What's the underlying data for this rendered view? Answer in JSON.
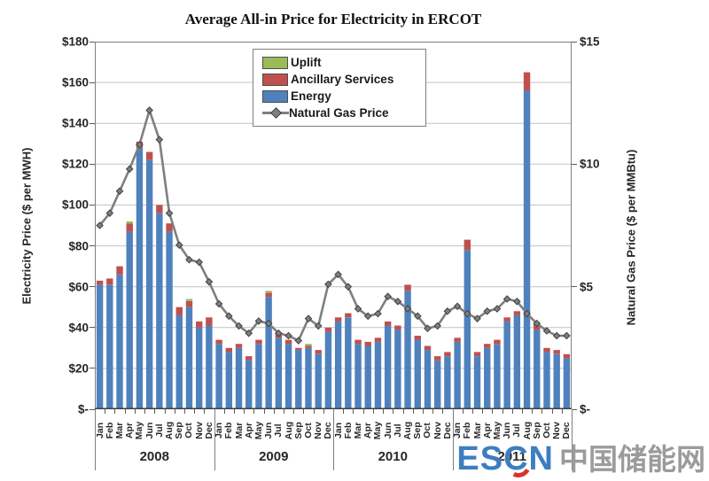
{
  "title": "Average All-in Price for Electricity in ERCOT",
  "watermark": {
    "es": "ES",
    "c": "C",
    "n": "N",
    "chinese": "中国储能网"
  },
  "chart_data": {
    "type": "bar",
    "subtype": "stacked-bars-with-line-overlay",
    "title": "Average All-in Price for Electricity in ERCOT",
    "month_labels": [
      "Jan",
      "Feb",
      "Mar",
      "Apr",
      "May",
      "Jun",
      "Jul",
      "Aug",
      "Sep",
      "Oct",
      "Nov",
      "Dec"
    ],
    "years": [
      "2008",
      "2009",
      "2010",
      "2011"
    ],
    "left_axis": {
      "label": "Electricity Price ($ per MWH)",
      "ticks": [
        "$180",
        "$160",
        "$140",
        "$120",
        "$100",
        "$80",
        "$60",
        "$40",
        "$20",
        "$-"
      ],
      "min": 0,
      "max": 180,
      "step": 20,
      "grid": true
    },
    "right_axis": {
      "label": "Natural Gas Price ($ per MMBtu)",
      "ticks": [
        "$15",
        "$10",
        "$5",
        "$-"
      ],
      "min": 0,
      "max": 15,
      "step": 5
    },
    "legend": {
      "position": "top-center-inside",
      "entries": [
        "Uplift",
        "Ancillary Services",
        "Energy",
        "Natural Gas Price"
      ]
    },
    "colors": {
      "uplift": "#9bbb59",
      "ancillary": "#c0504d",
      "energy": "#4f81bd",
      "gas_line": "#7f7f7f",
      "gas_marker_fill": "#7f7f7f",
      "gas_marker_edge": "#404040",
      "gridline": "#c3c3c3",
      "spine": "#808080"
    },
    "series": [
      {
        "name": "Energy",
        "type": "bar",
        "stack_order": 1,
        "axis": "left",
        "values": [
          61,
          61,
          66,
          87,
          128,
          122,
          96,
          87,
          46,
          50,
          40,
          41,
          32,
          28,
          30,
          24,
          32,
          55,
          35,
          32,
          29,
          30,
          27,
          38,
          43,
          45,
          32,
          31,
          33,
          41,
          39,
          58,
          34,
          29,
          24,
          26,
          33,
          78,
          26,
          30,
          32,
          43,
          46,
          156,
          39,
          28,
          27,
          25
        ]
      },
      {
        "name": "Ancillary Services",
        "type": "bar",
        "stack_order": 2,
        "axis": "left",
        "values": [
          2,
          3,
          4,
          4,
          3,
          4,
          4,
          4,
          4,
          3,
          3,
          4,
          2,
          2,
          2,
          2,
          2,
          2,
          2,
          2,
          1,
          1,
          2,
          2,
          2,
          2,
          2,
          2,
          2,
          2,
          2,
          3,
          2,
          2,
          2,
          2,
          2,
          5,
          2,
          2,
          2,
          2,
          2,
          9,
          3,
          2,
          2,
          2
        ]
      },
      {
        "name": "Uplift",
        "type": "bar",
        "stack_order": 3,
        "axis": "left",
        "values": [
          0,
          0,
          0,
          1,
          0,
          0,
          0,
          0,
          0,
          1,
          0,
          0,
          0,
          0,
          0,
          0,
          0,
          1,
          0,
          0,
          0,
          1,
          0,
          0,
          0,
          0,
          0,
          0,
          0,
          0,
          0,
          0,
          0,
          0,
          0,
          0,
          0,
          0,
          0,
          0,
          0,
          0,
          0,
          0,
          0,
          0,
          0,
          0
        ]
      },
      {
        "name": "Natural Gas Price",
        "type": "line",
        "axis": "right",
        "marker": "diamond",
        "values": [
          7.5,
          8.0,
          8.9,
          9.8,
          10.8,
          12.2,
          11.0,
          8.0,
          6.7,
          6.1,
          6.0,
          5.2,
          4.3,
          3.8,
          3.4,
          3.1,
          3.6,
          3.5,
          3.1,
          3.0,
          2.8,
          3.7,
          3.4,
          5.1,
          5.5,
          5.0,
          4.1,
          3.8,
          3.9,
          4.6,
          4.4,
          4.1,
          3.8,
          3.3,
          3.4,
          4.0,
          4.2,
          3.9,
          3.7,
          4.0,
          4.1,
          4.5,
          4.4,
          3.9,
          3.5,
          3.2,
          3.0,
          3.0
        ]
      }
    ]
  }
}
